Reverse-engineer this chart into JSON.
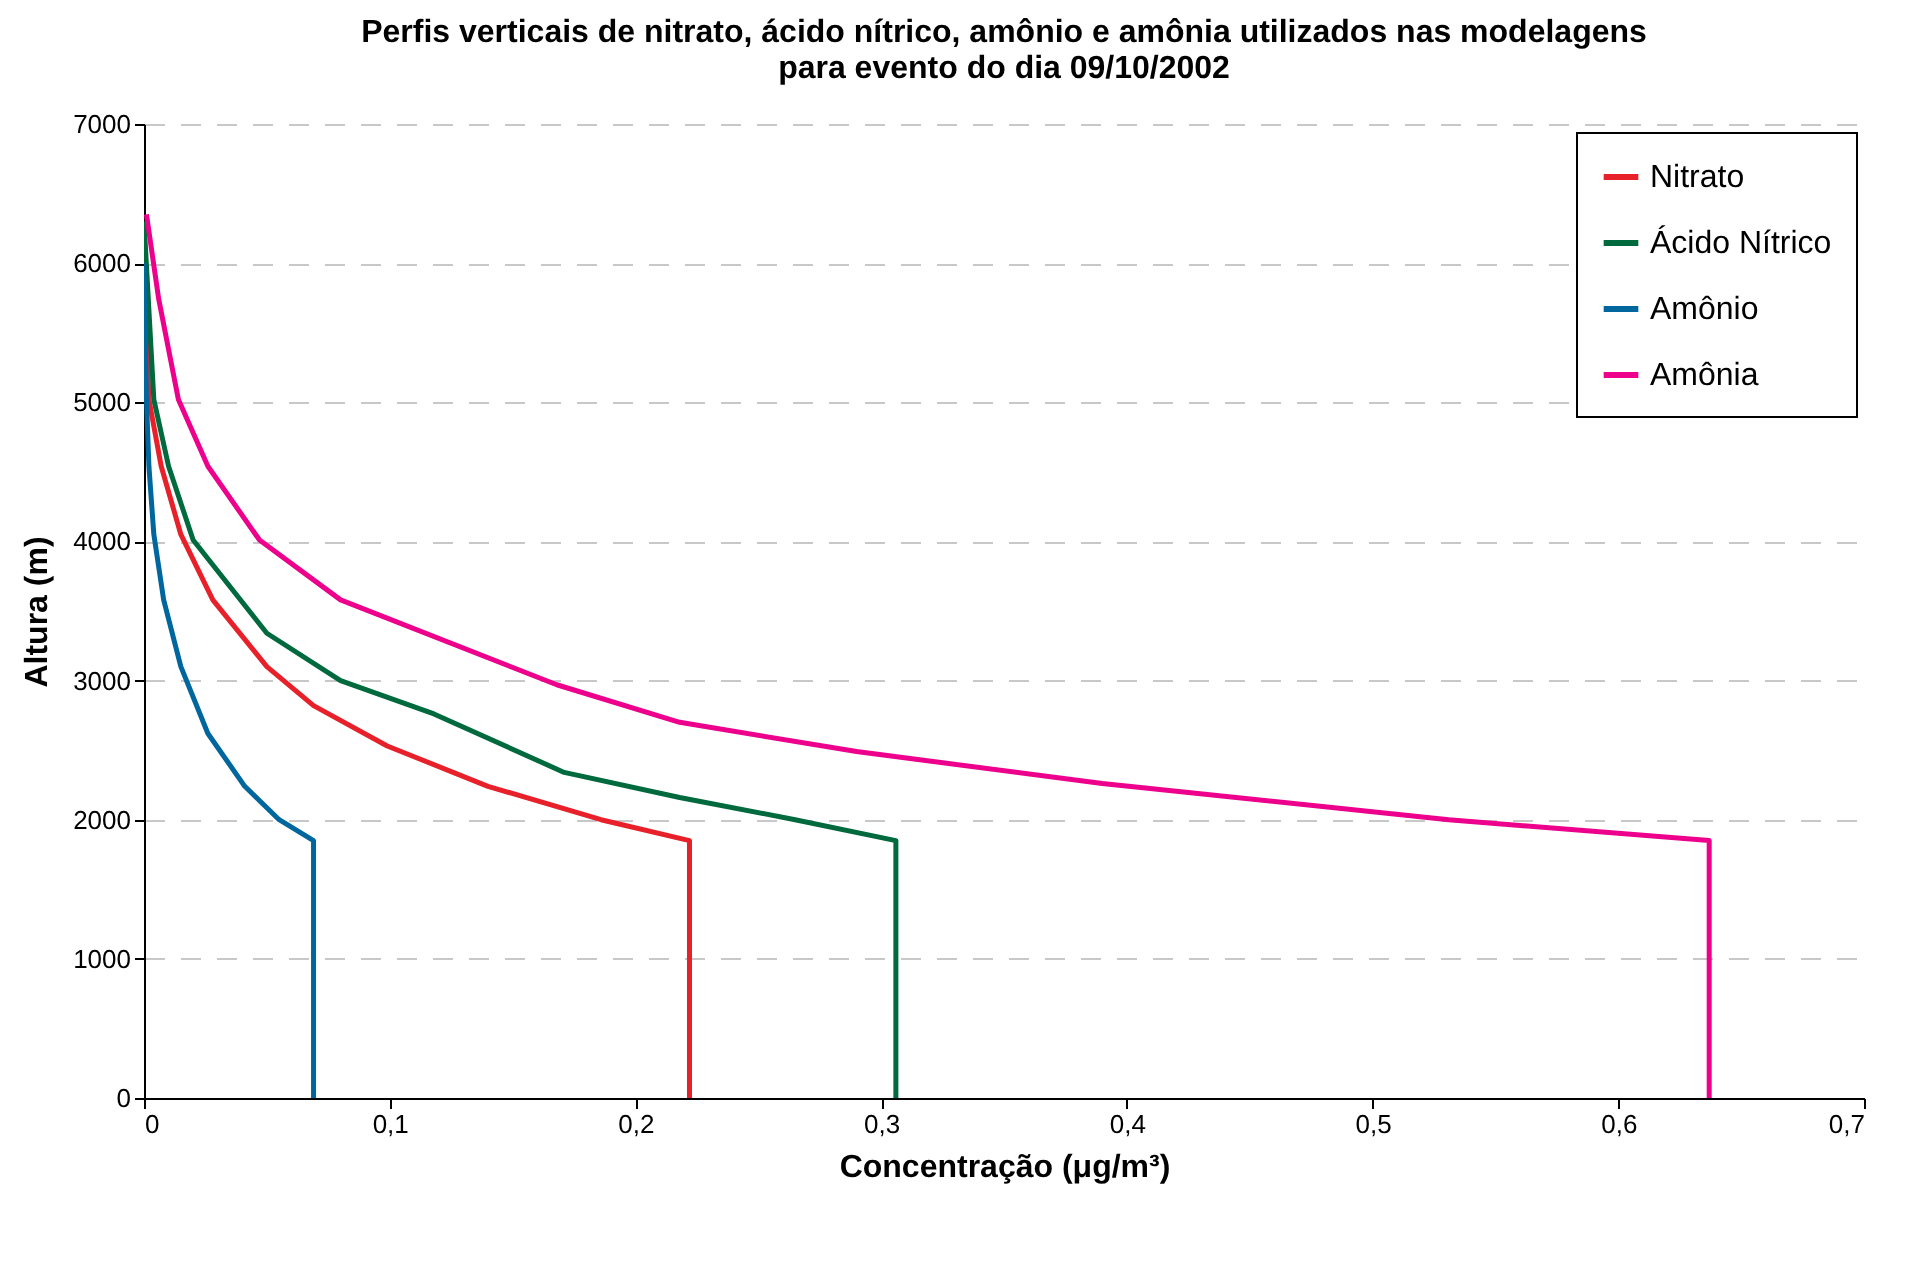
{
  "chart_data": {
    "type": "line",
    "title": "Perfis verticais de nitrato, ácido nítrico, amônio e amônia utilizados nas modelagens para evento do dia 09/10/2002",
    "xlabel": "Concentração (μg/m³)",
    "ylabel": "Altura (m)",
    "xlim": [
      0,
      0.7
    ],
    "xticks": [
      0,
      {
        "value": 0.1,
        "label": "0,1"
      },
      {
        "value": 0.2,
        "label": "0,2"
      },
      {
        "value": 0.3,
        "label": "0,3"
      },
      {
        "value": 0.4,
        "label": "0,4"
      },
      {
        "value": 0.5,
        "label": "0,5"
      },
      {
        "value": 0.6,
        "label": "0,6"
      },
      {
        "value": 0.7,
        "label": "0,7"
      }
    ],
    "ylim": [
      0,
      7000
    ],
    "yticks": [
      0,
      1000,
      2000,
      3000,
      4000,
      5000,
      6000,
      7000
    ],
    "grid": "y",
    "legend": "top right",
    "marker": "none",
    "line_style": "solid",
    "series": [
      {
        "name": "Nitrato",
        "color": "#e8202a",
        "x": [
          0.222,
          0.222,
          0.186,
          0.14,
          0.099,
          0.069,
          0.05,
          0.028,
          0.015,
          0.007,
          0.002,
          0
        ],
        "values": [
          0,
          1850,
          2000,
          2240,
          2530,
          2820,
          3100,
          3580,
          4050,
          4540,
          5020,
          6000
        ]
      },
      {
        "name": "Ácido Nítrico",
        "color": "#006a3e",
        "x": [
          0.306,
          0.306,
          0.265,
          0.218,
          0.171,
          0.118,
          0.08,
          0.05,
          0.02,
          0.01,
          0.004,
          0.001,
          0
        ],
        "values": [
          0,
          1850,
          2000,
          2160,
          2340,
          2760,
          3000,
          3340,
          4010,
          4540,
          5020,
          5980,
          6300
        ]
      },
      {
        "name": "Amônio",
        "color": "#00679e",
        "x": [
          0.069,
          0.069,
          0.055,
          0.041,
          0.026,
          0.015,
          0.008,
          0.004,
          0.002,
          0.001,
          0
        ],
        "values": [
          0,
          1850,
          2000,
          2240,
          2620,
          3100,
          3580,
          4050,
          4540,
          5020,
          6000
        ]
      },
      {
        "name": "Amônia",
        "color": "#ec008c",
        "x": [
          0.637,
          0.637,
          0.531,
          0.39,
          0.29,
          0.218,
          0.168,
          0.08,
          0.047,
          0.026,
          0.014,
          0.006,
          0.001
        ],
        "values": [
          0,
          1850,
          2000,
          2260,
          2490,
          2700,
          2970,
          3580,
          4010,
          4540,
          5020,
          5740,
          6350
        ]
      }
    ]
  }
}
